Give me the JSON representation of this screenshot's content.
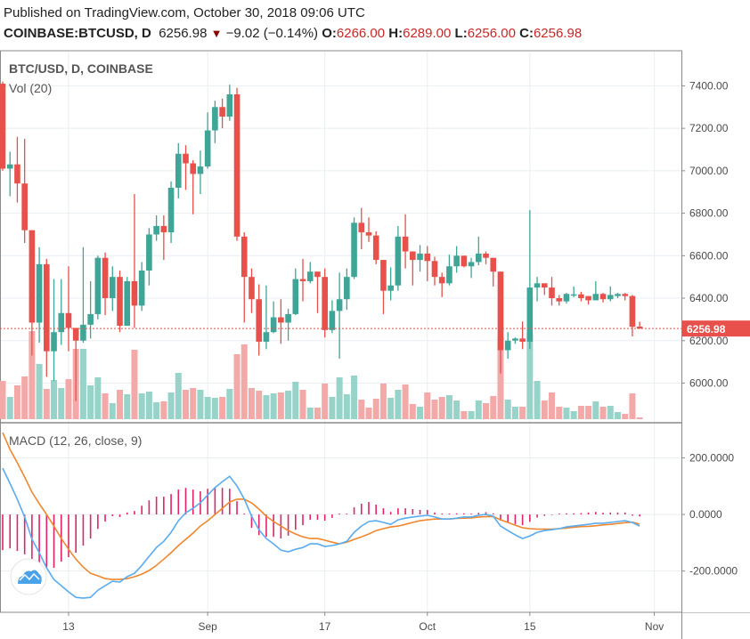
{
  "header": {
    "published": "Published on TradingView.com, October 30, 2018 09:06 UTC",
    "symbol": "COINBASE:BTCUSD, D",
    "last": "6256.98",
    "direction_icon": "down-triangle-icon",
    "change": "−9.02 (−0.14%)",
    "o_label": "O:",
    "o": "6266.00",
    "h_label": "H:",
    "h": "6289.00",
    "l_label": "L:",
    "l": "6256.00",
    "c_label": "C:",
    "c": "6256.98"
  },
  "colors": {
    "up": "#3fa597",
    "down": "#e8504b",
    "vol_up": "#98d3ca",
    "vol_down": "#f3a9a8",
    "macd": "#5aacef",
    "signal": "#f0872e",
    "histogram": "#e0246a",
    "grid": "#e8eef3"
  },
  "chart_data": {
    "type": "candlestick",
    "title": "BTC/USD, D, COINBASE",
    "volume_label": "Vol (20)",
    "price_ylim": [
      5826,
      7561
    ],
    "price_ticks": [
      "7400.00",
      "7200.00",
      "7000.00",
      "6800.00",
      "6600.00",
      "6400.00",
      "6200.00",
      "6000.00"
    ],
    "last_price_label": "6256.98",
    "grid": true,
    "x_ticks": [
      {
        "label": "13",
        "date": "2018-08-13"
      },
      {
        "label": "Sep",
        "date": "2018-09-01"
      },
      {
        "label": "17",
        "date": "2018-09-17"
      },
      {
        "label": "Oct",
        "date": "2018-10-01"
      },
      {
        "label": "15",
        "date": "2018-10-15"
      },
      {
        "label": "Nov",
        "date": "2018-11-01"
      }
    ],
    "candles_columns": [
      "date",
      "open",
      "high",
      "low",
      "close",
      "volume_relative"
    ],
    "candles": [
      [
        "2018-08-04",
        7410,
        7420,
        7000,
        7010,
        43
      ],
      [
        "2018-08-05",
        7010,
        7090,
        6880,
        7030,
        25
      ],
      [
        "2018-08-06",
        7030,
        7160,
        6850,
        6940,
        38
      ],
      [
        "2018-08-07",
        6940,
        7150,
        6660,
        6720,
        48
      ],
      [
        "2018-08-08",
        6720,
        6720,
        6130,
        6285,
        99
      ],
      [
        "2018-08-09",
        6285,
        6640,
        6190,
        6560,
        62
      ],
      [
        "2018-08-10",
        6560,
        6585,
        6030,
        6150,
        34
      ],
      [
        "2018-08-11",
        6150,
        6490,
        6010,
        6240,
        44
      ],
      [
        "2018-08-12",
        6240,
        6490,
        6180,
        6330,
        35
      ],
      [
        "2018-08-13",
        6330,
        6550,
        6150,
        6260,
        45
      ],
      [
        "2018-08-14",
        6260,
        6260,
        5915,
        6200,
        79
      ],
      [
        "2018-08-15",
        6200,
        6640,
        6190,
        6275,
        79
      ],
      [
        "2018-08-16",
        6275,
        6480,
        6210,
        6325,
        38
      ],
      [
        "2018-08-17",
        6325,
        6600,
        6300,
        6590,
        47
      ],
      [
        "2018-08-18",
        6590,
        6615,
        6320,
        6400,
        29
      ],
      [
        "2018-08-19",
        6400,
        6550,
        6340,
        6500,
        18
      ],
      [
        "2018-08-20",
        6500,
        6530,
        6240,
        6270,
        33
      ],
      [
        "2018-08-21",
        6270,
        6500,
        6270,
        6480,
        28
      ],
      [
        "2018-08-22",
        6480,
        6890,
        6260,
        6365,
        78
      ],
      [
        "2018-08-23",
        6365,
        6570,
        6340,
        6530,
        29
      ],
      [
        "2018-08-24",
        6530,
        6730,
        6460,
        6700,
        31
      ],
      [
        "2018-08-25",
        6700,
        6790,
        6670,
        6740,
        19
      ],
      [
        "2018-08-26",
        6740,
        6790,
        6580,
        6710,
        20
      ],
      [
        "2018-08-27",
        6710,
        6950,
        6660,
        6920,
        30
      ],
      [
        "2018-08-28",
        6920,
        7130,
        6870,
        7080,
        52
      ],
      [
        "2018-08-29",
        7080,
        7120,
        6910,
        7035,
        33
      ],
      [
        "2018-08-30",
        7035,
        7050,
        6795,
        6985,
        35
      ],
      [
        "2018-08-31",
        6985,
        7095,
        6890,
        7020,
        33
      ],
      [
        "2018-09-01",
        7020,
        7275,
        7010,
        7190,
        25
      ],
      [
        "2018-09-02",
        7190,
        7330,
        7130,
        7300,
        24
      ],
      [
        "2018-09-03",
        7300,
        7340,
        7200,
        7255,
        25
      ],
      [
        "2018-09-04",
        7255,
        7405,
        7235,
        7360,
        34
      ],
      [
        "2018-09-05",
        7360,
        7390,
        6670,
        6690,
        73
      ],
      [
        "2018-09-06",
        6690,
        6710,
        6285,
        6500,
        84
      ],
      [
        "2018-09-07",
        6500,
        6540,
        6330,
        6395,
        35
      ],
      [
        "2018-09-08",
        6395,
        6465,
        6130,
        6195,
        32
      ],
      [
        "2018-09-09",
        6195,
        6460,
        6160,
        6240,
        27
      ],
      [
        "2018-09-10",
        6240,
        6385,
        6235,
        6310,
        29
      ],
      [
        "2018-09-11",
        6310,
        6395,
        6185,
        6285,
        30
      ],
      [
        "2018-09-12",
        6285,
        6350,
        6200,
        6325,
        32
      ],
      [
        "2018-09-13",
        6325,
        6540,
        6320,
        6490,
        42
      ],
      [
        "2018-09-14",
        6490,
        6585,
        6385,
        6480,
        33
      ],
      [
        "2018-09-15",
        6480,
        6570,
        6470,
        6525,
        13
      ],
      [
        "2018-09-16",
        6525,
        6525,
        6330,
        6500,
        13
      ],
      [
        "2018-09-17",
        6500,
        6540,
        6215,
        6250,
        40
      ],
      [
        "2018-09-18",
        6250,
        6390,
        6235,
        6340,
        25
      ],
      [
        "2018-09-19",
        6340,
        6520,
        6115,
        6395,
        47
      ],
      [
        "2018-09-20",
        6395,
        6540,
        6345,
        6500,
        28
      ],
      [
        "2018-09-21",
        6500,
        6780,
        6490,
        6755,
        49
      ],
      [
        "2018-09-22",
        6755,
        6825,
        6630,
        6710,
        22
      ],
      [
        "2018-09-23",
        6710,
        6780,
        6665,
        6695,
        13
      ],
      [
        "2018-09-24",
        6695,
        6715,
        6560,
        6580,
        23
      ],
      [
        "2018-09-25",
        6580,
        6580,
        6325,
        6435,
        40
      ],
      [
        "2018-09-26",
        6435,
        6545,
        6390,
        6460,
        24
      ],
      [
        "2018-09-27",
        6460,
        6740,
        6435,
        6690,
        33
      ],
      [
        "2018-09-28",
        6690,
        6795,
        6540,
        6620,
        39
      ],
      [
        "2018-09-29",
        6620,
        6620,
        6460,
        6580,
        17
      ],
      [
        "2018-09-30",
        6580,
        6650,
        6525,
        6610,
        14
      ],
      [
        "2018-10-01",
        6610,
        6645,
        6480,
        6575,
        30
      ],
      [
        "2018-10-02",
        6575,
        6595,
        6460,
        6500,
        22
      ],
      [
        "2018-10-03",
        6500,
        6520,
        6405,
        6470,
        25
      ],
      [
        "2018-10-04",
        6470,
        6605,
        6460,
        6550,
        27
      ],
      [
        "2018-10-05",
        6550,
        6645,
        6520,
        6600,
        21
      ],
      [
        "2018-10-06",
        6600,
        6600,
        6545,
        6550,
        9
      ],
      [
        "2018-10-07",
        6550,
        6590,
        6495,
        6570,
        9
      ],
      [
        "2018-10-08",
        6570,
        6690,
        6555,
        6610,
        21
      ],
      [
        "2018-10-09",
        6610,
        6620,
        6560,
        6590,
        18
      ],
      [
        "2018-10-10",
        6590,
        6590,
        6455,
        6525,
        26
      ],
      [
        "2018-10-11",
        6525,
        6525,
        6045,
        6155,
        93
      ],
      [
        "2018-10-12",
        6155,
        6240,
        6115,
        6200,
        22
      ],
      [
        "2018-10-13",
        6200,
        6215,
        6185,
        6210,
        14
      ],
      [
        "2018-10-14",
        6210,
        6290,
        6160,
        6195,
        14
      ],
      [
        "2018-10-15",
        6195,
        6815,
        6160,
        6450,
        97
      ],
      [
        "2018-10-16",
        6450,
        6500,
        6385,
        6470,
        43
      ],
      [
        "2018-10-17",
        6470,
        6470,
        6415,
        6450,
        21
      ],
      [
        "2018-10-18",
        6450,
        6500,
        6365,
        6400,
        30
      ],
      [
        "2018-10-19",
        6400,
        6415,
        6365,
        6385,
        14
      ],
      [
        "2018-10-20",
        6385,
        6425,
        6375,
        6420,
        13
      ],
      [
        "2018-10-21",
        6415,
        6455,
        6405,
        6418,
        9
      ],
      [
        "2018-10-22",
        6418,
        6430,
        6385,
        6400,
        15
      ],
      [
        "2018-10-23",
        6410,
        6410,
        6370,
        6390,
        15
      ],
      [
        "2018-10-24",
        6390,
        6480,
        6390,
        6420,
        20
      ],
      [
        "2018-10-25",
        6420,
        6425,
        6380,
        6395,
        14
      ],
      [
        "2018-10-26",
        6395,
        6455,
        6385,
        6415,
        15
      ],
      [
        "2018-10-27",
        6410,
        6425,
        6400,
        6420,
        8
      ],
      [
        "2018-10-28",
        6420,
        6425,
        6390,
        6410,
        6
      ],
      [
        "2018-10-29",
        6410,
        6415,
        6220,
        6265,
        29
      ],
      [
        "2018-10-30",
        6266,
        6289,
        6256,
        6256.98,
        2
      ]
    ],
    "macd": {
      "label": "MACD (12, 26, close, 9)",
      "ylim": [
        -346,
        315
      ],
      "ticks": [
        {
          "label": "200.0000",
          "value": 200
        },
        {
          "label": "0.0000",
          "value": 0
        },
        {
          "label": "-200.0000",
          "value": -200
        }
      ],
      "macd": [
        164,
        110,
        54,
        -9,
        -88,
        -135,
        -189,
        -230,
        -252,
        -274,
        -293,
        -296,
        -293,
        -268,
        -252,
        -236,
        -239,
        -220,
        -208,
        -180,
        -148,
        -117,
        -95,
        -63,
        -22,
        6,
        22,
        41,
        69,
        95,
        116,
        135,
        101,
        54,
        -6,
        -54,
        -85,
        -104,
        -126,
        -132,
        -123,
        -117,
        -104,
        -104,
        -113,
        -110,
        -104,
        -95,
        -63,
        -41,
        -25,
        -22,
        -28,
        -35,
        -19,
        -13,
        -9,
        -6,
        -3,
        -9,
        -16,
        -16,
        -13,
        -9,
        -9,
        -3,
        0,
        -6,
        -41,
        -57,
        -72,
        -85,
        -76,
        -63,
        -57,
        -54,
        -50,
        -44,
        -41,
        -38,
        -35,
        -31,
        -31,
        -28,
        -25,
        -22,
        -28,
        -41
      ],
      "signal": [
        290,
        230,
        183,
        132,
        79,
        38,
        0,
        -41,
        -85,
        -123,
        -158,
        -186,
        -208,
        -217,
        -227,
        -230,
        -230,
        -227,
        -220,
        -211,
        -198,
        -180,
        -158,
        -135,
        -110,
        -88,
        -66,
        -41,
        -22,
        0,
        22,
        44,
        54,
        54,
        41,
        19,
        -6,
        -25,
        -41,
        -57,
        -69,
        -79,
        -85,
        -85,
        -91,
        -98,
        -104,
        -98,
        -88,
        -79,
        -69,
        -57,
        -50,
        -44,
        -41,
        -35,
        -28,
        -22,
        -19,
        -16,
        -16,
        -16,
        -14,
        -13,
        -12,
        -9,
        -8,
        -7,
        -19,
        -28,
        -38,
        -47,
        -50,
        -52,
        -52,
        -52,
        -50,
        -48,
        -45,
        -43,
        -42,
        -40,
        -37,
        -35,
        -32,
        -29,
        -27,
        -34
      ]
    }
  },
  "logo": {
    "icon": "tradingview-cloud-icon"
  }
}
